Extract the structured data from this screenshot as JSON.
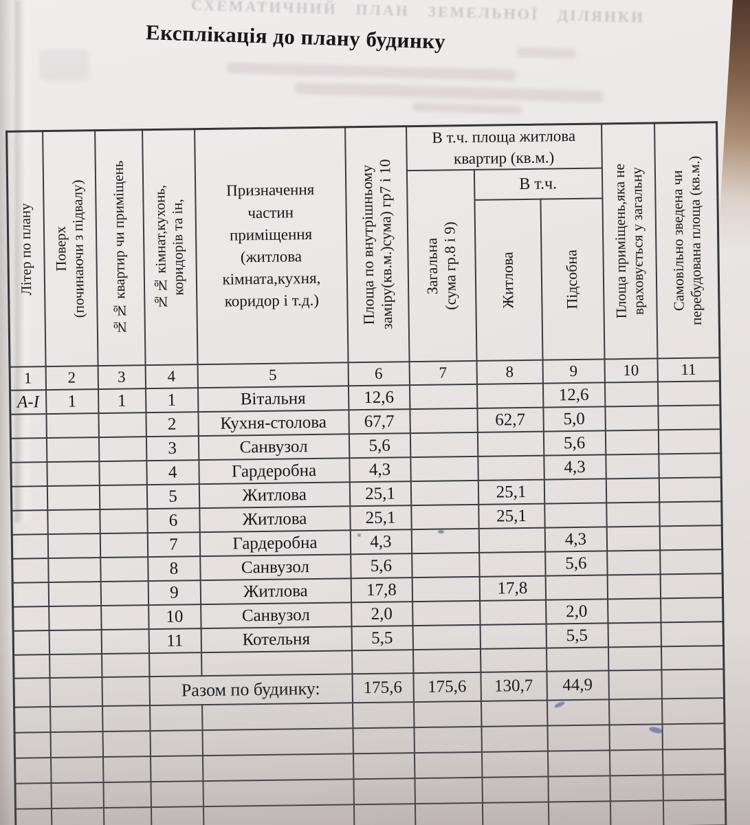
{
  "page": {
    "title": "Експлікація до плану будинку",
    "bleedthrough_top": "СХЕМАТИЧНИЙ ПЛАН ЗЕМЕЛЬНОЇ ДІЛЯНКИ"
  },
  "table": {
    "headers": {
      "col1": "Літер по плану",
      "col2": "Поверх\n(починаючи з підвалу)",
      "col3": "№№ квартир чи приміщень",
      "col4": "№№ кімнат,кухонь,\nкоридорів та ін,",
      "col5": "Призначення\nчастин\nприміщення\n(житлова\nкімната,кухня,\nкоридор і т.д.)",
      "col6": "Площа по внутрішньому\nзаміру(кв.м.)сума) гр7 і 10",
      "group7_9": "В т.ч. площа житлова\nквартир (кв.м.)",
      "col7": "Загальна\n(сума гр.8 і 9)",
      "subgroup8_9": "В т.ч.",
      "col8": "Житлова",
      "col9": "Підсобна",
      "col10": "Площа приміщень,яка не\nвраховується у загальну",
      "col11": "Самовільно зведена чи\nперебудована площа (кв.м.)"
    },
    "column_numbers": [
      "1",
      "2",
      "3",
      "4",
      "5",
      "6",
      "7",
      "8",
      "9",
      "10",
      "11"
    ],
    "rows": [
      {
        "cells": [
          "А-І",
          "1",
          "1",
          "1",
          "Вітальня",
          "12,6",
          "",
          "",
          "12,6",
          "",
          ""
        ]
      },
      {
        "cells": [
          "",
          "",
          "",
          "2",
          "Кухня-столова",
          "67,7",
          "",
          "62,7",
          "5,0",
          "",
          ""
        ]
      },
      {
        "cells": [
          "",
          "",
          "",
          "3",
          "Санвузол",
          "5,6",
          "",
          "",
          "5,6",
          "",
          ""
        ]
      },
      {
        "cells": [
          "",
          "",
          "",
          "4",
          "Гардеробна",
          "4,3",
          "",
          "",
          "4,3",
          "",
          ""
        ]
      },
      {
        "cells": [
          "",
          "",
          "",
          "5",
          "Житлова",
          "25,1",
          "",
          "25,1",
          "",
          "",
          ""
        ]
      },
      {
        "cells": [
          "",
          "",
          "",
          "6",
          "Житлова",
          "25,1",
          "",
          "25,1",
          "",
          "",
          ""
        ]
      },
      {
        "cells": [
          "",
          "",
          "",
          "7",
          "Гардеробна",
          "4,3",
          "",
          "",
          "4,3",
          "",
          ""
        ]
      },
      {
        "cells": [
          "",
          "",
          "",
          "8",
          "Санвузол",
          "5,6",
          "",
          "",
          "5,6",
          "",
          ""
        ]
      },
      {
        "cells": [
          "",
          "",
          "",
          "9",
          "Житлова",
          "17,8",
          "",
          "17,8",
          "",
          "",
          ""
        ]
      },
      {
        "cells": [
          "",
          "",
          "",
          "10",
          "Санвузол",
          "2,0",
          "",
          "",
          "2,0",
          "",
          ""
        ]
      },
      {
        "cells": [
          "",
          "",
          "",
          "11",
          "Котельня",
          "5,5",
          "",
          "",
          "5,5",
          "",
          ""
        ]
      }
    ],
    "totals": {
      "label": "Разом по будинку:",
      "area": "175,6",
      "total": "175,6",
      "living": "130,7",
      "utility": "44,9"
    }
  }
}
